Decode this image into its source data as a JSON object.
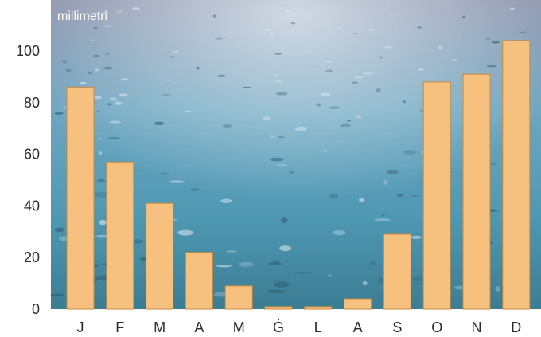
{
  "chart_data": {
    "type": "bar",
    "title": "",
    "xlabel": "",
    "ylabel": "millimetri",
    "categories": [
      "J",
      "F",
      "M",
      "A",
      "M",
      "Ġ",
      "L",
      "A",
      "S",
      "O",
      "N",
      "D"
    ],
    "values": [
      86,
      57,
      41,
      22,
      9,
      1,
      1,
      4,
      29,
      88,
      91,
      104
    ],
    "ylim": [
      0,
      118
    ],
    "yticks": [
      0,
      20,
      40,
      60,
      80,
      100
    ],
    "grid": false,
    "legend": "none",
    "colors": {
      "bar_fill": "#f6c07f",
      "bar_stroke": "#c98a3c",
      "backdrop_top": "#7f8fa6",
      "backdrop_mid": "#4f9bb8",
      "backdrop_bottom": "#3a7f95"
    },
    "background": "rain-on-water-photo"
  }
}
